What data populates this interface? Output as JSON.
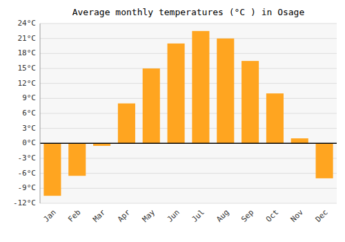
{
  "chart_data": {
    "type": "bar",
    "title": "Average monthly temperatures (°C ) in Osage",
    "categories": [
      "Jan",
      "Feb",
      "Mar",
      "Apr",
      "May",
      "Jun",
      "Jul",
      "Aug",
      "Sep",
      "Oct",
      "Nov",
      "Dec"
    ],
    "values": [
      -10.5,
      -6.5,
      -0.5,
      8.0,
      15.0,
      20.0,
      22.5,
      21.0,
      16.5,
      10.0,
      1.0,
      -7.0
    ],
    "color": "#FFA520",
    "ylim": [
      -12,
      24
    ],
    "yticks": [
      {
        "value": -12,
        "label": "-12°C"
      },
      {
        "value": -9,
        "label": "-9°C"
      },
      {
        "value": -6,
        "label": "-6°C"
      },
      {
        "value": -3,
        "label": "-3°C"
      },
      {
        "value": 0,
        "label": "0°C"
      },
      {
        "value": 3,
        "label": "3°C"
      },
      {
        "value": 6,
        "label": "6°C"
      },
      {
        "value": 9,
        "label": "9°C"
      },
      {
        "value": 12,
        "label": "12°C"
      },
      {
        "value": 15,
        "label": "15°C"
      },
      {
        "value": 18,
        "label": "18°C"
      },
      {
        "value": 21,
        "label": "21°C"
      },
      {
        "value": 24,
        "label": "24°C"
      }
    ],
    "grid": true
  }
}
